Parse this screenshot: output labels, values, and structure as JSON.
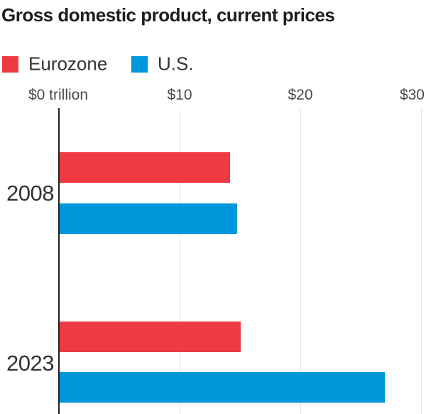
{
  "title": "Gross domestic product, current prices",
  "legend": [
    {
      "label": "Eurozone",
      "color": "#ee3b43"
    },
    {
      "label": "U.S.",
      "color": "#0098db"
    }
  ],
  "chart_data": {
    "type": "bar",
    "orientation": "horizontal",
    "title": "Gross domestic product, current prices",
    "unit": "trillion USD, current prices",
    "categories": [
      "2008",
      "2023"
    ],
    "series": [
      {
        "name": "Eurozone",
        "color": "#ee3b43",
        "values": [
          14.2,
          15.1
        ]
      },
      {
        "name": "U.S.",
        "color": "#0098db",
        "values": [
          14.8,
          27.0
        ]
      }
    ],
    "x_ticks": [
      "$0 trillion",
      "$10",
      "$20",
      "$30"
    ],
    "xlim": [
      0,
      30
    ],
    "grid": true,
    "legend_position": "top-left"
  }
}
